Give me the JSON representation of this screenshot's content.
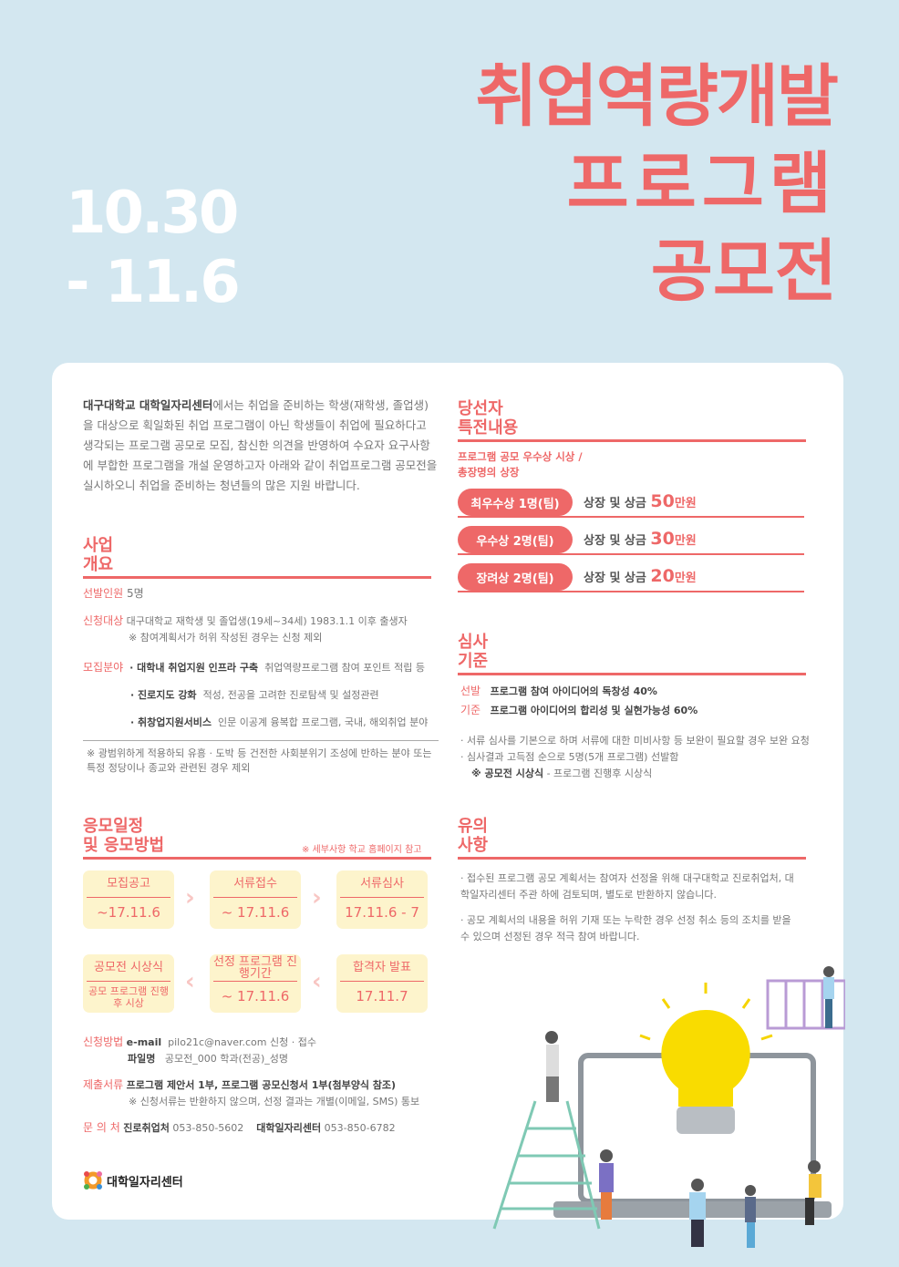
{
  "title": {
    "line1": "취업역량개발",
    "line2": "프로그램",
    "line3": "공모전"
  },
  "dates": {
    "start": "10.30",
    "end": "-  11.6"
  },
  "intro": {
    "bold": "대구대학교 대학일자리센터",
    "text": "에서는 취업을 준비하는 학생(재학생, 졸업생)을 대상으로 획일화된 취업 프로그램이 아닌 학생들이 취업에 필요하다고 생각되는 프로그램 공모로 모집, 참신한 의견을 반영하여 수요자 요구사항에 부합한 프로그램을 개설 운영하고자 아래와 같이 취업프로그램 공모전을 실시하오니 취업을 준비하는 청년들의 많은 지원 바랍니다."
  },
  "overview": {
    "title1": "사업",
    "title2": "개요",
    "selection_label": "선발인원",
    "selection_value": "5명",
    "target_label": "신청대상",
    "target_value": "대구대학교 재학생 및 졸업생(19세~34세) 1983.1.1 이후 출생자",
    "target_note": "※ 참여계획서가 허위 작성된 경우는 신청 제외",
    "field_label": "모집분야",
    "fields": [
      {
        "name": "· 대학내 취업지원 인프라 구축",
        "desc": "취업역량프로그램 참여 포인트 적립 등"
      },
      {
        "name": "· 진로지도 강화",
        "desc": "적성, 전공을 고려한 진로탐색 및 설정관련"
      },
      {
        "name": "· 취창업지원서비스",
        "desc": "인문 이공계 융복합 프로그램, 국내, 해외취업 분야"
      }
    ],
    "note": "※ 광범위하게 적용하되 유흥 · 도박 등 건전한 사회분위기 조성에 반하는 분야 또는 특정 정당이나 종교와 관련된 경우 제외"
  },
  "schedule": {
    "title1": "응모일정",
    "title2": "및 응모방법",
    "note": "※ 세부사항 학교 홈페이지 참고",
    "steps": [
      {
        "h": "모집공고",
        "v": "~17.11.6"
      },
      {
        "h": "서류접수",
        "v": "~ 17.11.6"
      },
      {
        "h": "서류심사",
        "v": "17.11.6 - 7"
      },
      {
        "h": "합격자 발표",
        "v": "17.11.7"
      },
      {
        "h": "선정 프로그램 진행기간",
        "v": "~ 17.11.6"
      },
      {
        "h": "공모전 시상식",
        "v": "공모 프로그램 진행 후 시상"
      }
    ]
  },
  "apply": {
    "method_label": "신청방법",
    "email_label": "e-mail",
    "email_value": "pilo21c@naver.com 신청 · 접수",
    "file_label": "파일명",
    "file_value": "공모전_000 학과(전공)_성명",
    "docs_label": "제출서류",
    "docs_value": "프로그램 제안서 1부, 프로그램 공모신청서 1부(첨부양식 참조)",
    "docs_note": "※ 신청서류는 반환하지 않으며, 선정 결과는 개별(이메일, SMS) 통보",
    "contact_label": "문 의 처",
    "contact1_name": "진로취업처",
    "contact1_tel": "053-850-5602",
    "contact2_name": "대학일자리센터",
    "contact2_tel": "053-850-6782"
  },
  "logo": "대학일자리센터",
  "prizes": {
    "title1": "당선자",
    "title2": "특전내용",
    "subtitle1": "프로그램 공모 우수상 시상 /",
    "subtitle2": "총장명의 상장",
    "items": [
      {
        "rank": "최우수상 1명(팀)",
        "desc": "상장 및 상금 ",
        "amount": "50",
        "unit": "만원"
      },
      {
        "rank": "우수상 2명(팀)",
        "desc": "상장 및 상금 ",
        "amount": "30",
        "unit": "만원"
      },
      {
        "rank": "장려상 2명(팀)",
        "desc": "상장 및 상금 ",
        "amount": "20",
        "unit": "만원"
      }
    ]
  },
  "criteria": {
    "title1": "심사",
    "title2": "기준",
    "label1": "선발",
    "label2": "기준",
    "item1": "프로그램 참여 아이디어의 독창성 40%",
    "item2": "프로그램 아이디어의 합리성 및 실현가능성 60%",
    "note1": "· 서류 심사를 기본으로 하며 서류에 대한 미비사항 등 보완이 필요할 경우 보완 요청",
    "note2": "· 심사결과 고득점 순으로 5명(5개 프로그램) 선발함",
    "note3_bold": "※ 공모전 시상식",
    "note3": " -  프로그램 진행후 시상식"
  },
  "notice": {
    "title1": "유의",
    "title2": "사항",
    "item1": "· 접수된 프로그램 공모 계획서는 참여자 선정을 위해 대구대학교 진로취업처, 대학일자리센터 주관 하에 검토되며, 별도로 반환하지 않습니다.",
    "item2": "· 공모 계획서의 내용을 허위 기재 또는 누락한 경우 선정 취소 등의 조치를 받을 수 있으며 선정된 경우 적극 참여 바랍니다."
  },
  "colors": {
    "accent": "#ee6868",
    "background": "#d3e7f0",
    "box": "#fdf4cc"
  }
}
